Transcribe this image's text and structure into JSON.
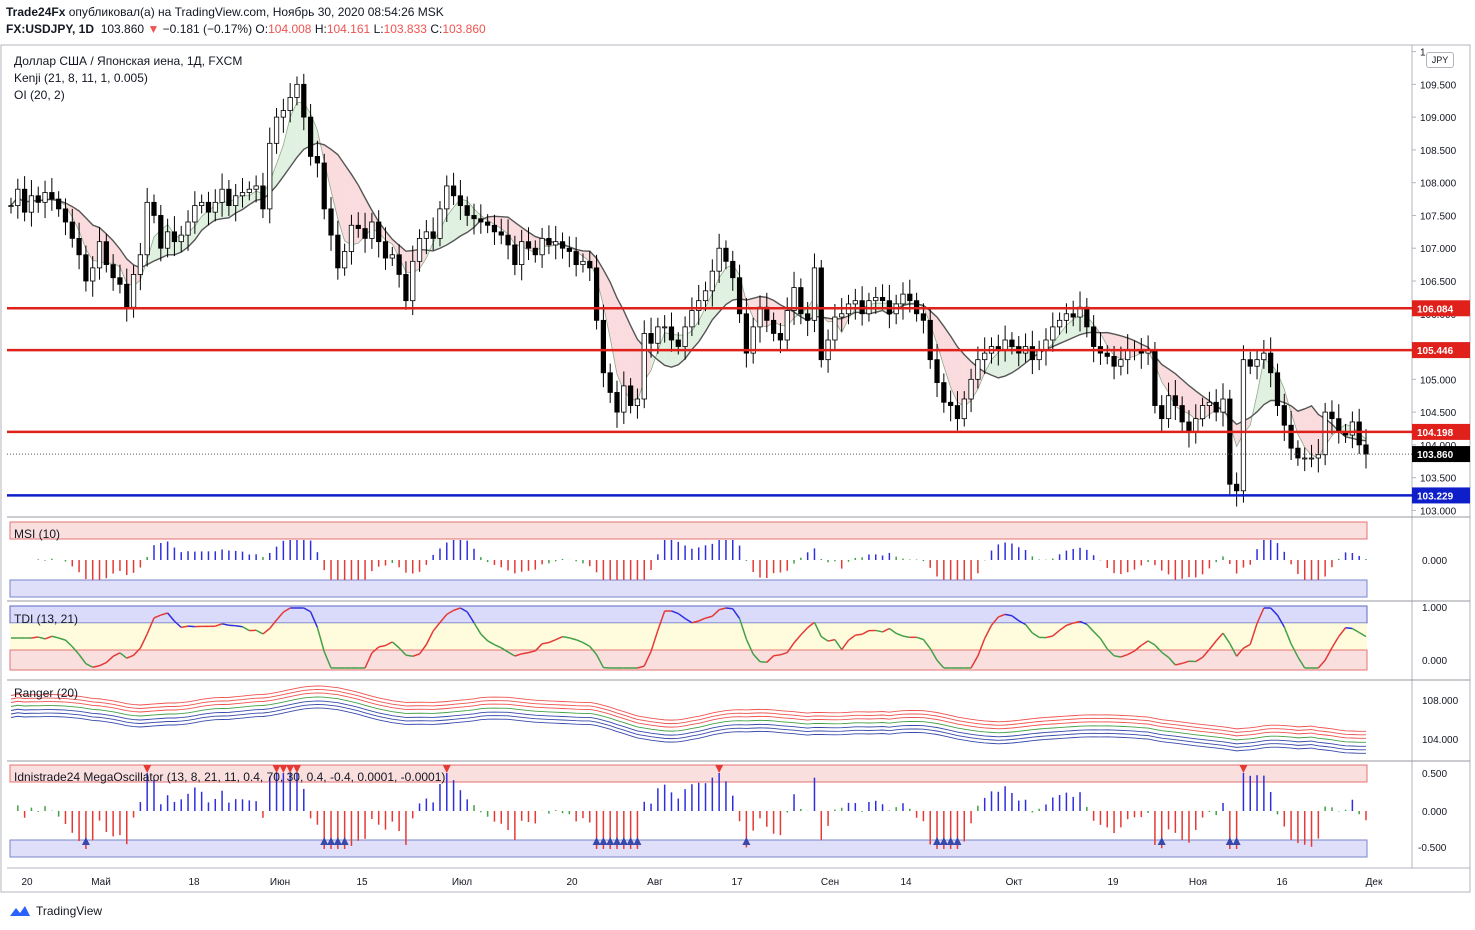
{
  "header": {
    "publisher": "Trade24Fx",
    "published_text": "опубликовал(а) на TradingView.com, Ноябрь 30, 2020 08:54:26 MSK",
    "symbol": "FX:USDJPY, 1D",
    "last": "103.860",
    "change": "−0.181 (−0.17%)",
    "o_label": "O:",
    "o": "104.008",
    "h_label": "H:",
    "h": "104.161",
    "l_label": "L:",
    "l": "103.833",
    "c_label": "C:",
    "c": "103.860"
  },
  "legend": {
    "title": "Доллар США / Японская иена, 1Д, FXCM",
    "kenji": "Kenji (21, 8, 11, 1, 0.005)",
    "oi": "OI (20, 2)"
  },
  "currency_button": "JPY",
  "panes": {
    "msi": "MSI (10)",
    "tdi": "TDI (13, 21)",
    "ranger": "Ranger (20)",
    "mega": "Idnistrade24 MegaOscillator (13, 8, 21, 11, 0.4, 70, 30, 0.4, -0.4, 0.0001, -0.0001)"
  },
  "brand": "TradingView",
  "colors": {
    "up": "#ffffff",
    "down": "#000000",
    "level_red": "#e0201b",
    "level_blue": "#0e1ec9",
    "signal_red": "#ef5350",
    "signal_blue": "#5b5bd6",
    "osc_blue": "#2f2fe0",
    "osc_red": "#e53935",
    "osc_green": "#43a047"
  },
  "chart_data": {
    "type": "candlestick",
    "price_axis": {
      "ticks": [
        "103.000",
        "103.500",
        "104.000",
        "104.500",
        "105.000",
        "105.500",
        "106.000",
        "106.500",
        "107.000",
        "107.500",
        "108.000",
        "108.500",
        "109.000",
        "109.500",
        "1"
      ],
      "ylim": [
        102.9,
        110.1
      ]
    },
    "x_axis_labels": [
      "20",
      "Май",
      "18",
      "Июн",
      "15",
      "Июл",
      "20",
      "Авг",
      "17",
      "Сен",
      "14",
      "Окт",
      "19",
      "Ноя",
      "16",
      "Дек"
    ],
    "levels": [
      {
        "value": 106.084,
        "label": "106.084",
        "color": "#e0201b"
      },
      {
        "value": 105.446,
        "label": "105.446",
        "color": "#e0201b"
      },
      {
        "value": 104.198,
        "label": "104.198",
        "color": "#e0201b"
      },
      {
        "value": 103.229,
        "label": "103.229",
        "color": "#0e1ec9"
      }
    ],
    "last_price": {
      "value": 103.86,
      "label": "103.860"
    },
    "closes": [
      107.65,
      107.9,
      107.55,
      107.8,
      107.7,
      107.85,
      107.75,
      107.6,
      107.4,
      107.15,
      106.9,
      106.5,
      106.7,
      107.1,
      106.75,
      106.55,
      106.45,
      106.1,
      106.6,
      106.9,
      107.7,
      107.5,
      107.0,
      107.25,
      107.1,
      107.2,
      107.4,
      107.65,
      107.7,
      107.55,
      107.7,
      107.9,
      107.65,
      107.8,
      107.85,
      107.9,
      107.95,
      107.6,
      108.6,
      109.0,
      109.1,
      109.3,
      109.5,
      109.0,
      108.4,
      108.3,
      107.6,
      107.2,
      106.7,
      106.95,
      107.35,
      107.3,
      107.15,
      107.4,
      107.1,
      106.85,
      106.9,
      106.6,
      106.2,
      106.8,
      107.15,
      107.25,
      107.15,
      107.6,
      107.95,
      107.8,
      107.65,
      107.5,
      107.45,
      107.4,
      107.35,
      107.25,
      107.2,
      107.05,
      106.75,
      107.1,
      107.0,
      106.9,
      107.15,
      107.05,
      107.1,
      107.0,
      106.95,
      106.75,
      106.8,
      106.7,
      105.9,
      105.1,
      104.8,
      104.5,
      104.9,
      104.6,
      104.7,
      105.7,
      105.55,
      105.8,
      105.8,
      105.6,
      105.5,
      105.8,
      106.05,
      106.2,
      106.35,
      106.65,
      107.0,
      106.8,
      106.55,
      106.0,
      105.4,
      105.8,
      106.1,
      105.9,
      105.7,
      105.6,
      106.05,
      106.4,
      106.0,
      105.9,
      106.7,
      105.3,
      105.6,
      105.95,
      106.0,
      106.15,
      106.2,
      106.0,
      106.2,
      106.25,
      106.2,
      106.0,
      106.15,
      106.3,
      106.2,
      106.0,
      105.9,
      105.3,
      104.95,
      104.65,
      104.6,
      104.4,
      104.7,
      105.0,
      105.3,
      105.4,
      105.5,
      105.45,
      105.6,
      105.5,
      105.4,
      105.5,
      105.3,
      105.45,
      105.6,
      105.8,
      105.9,
      106.0,
      105.95,
      106.1,
      105.8,
      105.5,
      105.4,
      105.35,
      105.2,
      105.3,
      105.45,
      105.45,
      105.4,
      105.45,
      104.6,
      104.4,
      104.75,
      104.6,
      104.35,
      104.2,
      104.4,
      104.6,
      104.65,
      104.5,
      104.7,
      103.4,
      103.3,
      105.3,
      105.2,
      105.3,
      105.4,
      105.1,
      104.6,
      104.3,
      103.95,
      103.8,
      103.8,
      103.8,
      103.85,
      104.5,
      104.4,
      104.2,
      104.15,
      104.35,
      104.0,
      103.86
    ]
  }
}
